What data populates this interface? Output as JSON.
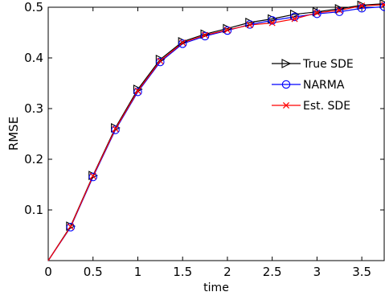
{
  "chart_data": {
    "type": "line",
    "title": "",
    "xlabel": "time",
    "ylabel": "RMSE",
    "xlim": [
      0,
      3.75
    ],
    "ylim": [
      0,
      0.5
    ],
    "x_ticks": [
      0,
      0.5,
      1,
      1.5,
      2,
      2.5,
      3,
      3.5
    ],
    "x_tick_labels": [
      "0",
      "0.5",
      "1",
      "1.5",
      "2",
      "2.5",
      "3",
      "3.5"
    ],
    "y_ticks": [
      0.1,
      0.2,
      0.3,
      0.4,
      0.5
    ],
    "y_tick_labels": [
      "0.1",
      "0.2",
      "0.3",
      "0.4",
      "0.5"
    ],
    "grid": false,
    "legend_position": "right",
    "x": [
      0,
      0.25,
      0.5,
      0.75,
      1,
      1.25,
      1.5,
      1.75,
      2,
      2.25,
      2.5,
      2.75,
      3,
      3.25,
      3.5,
      3.75
    ],
    "series": [
      {
        "name": "True SDE",
        "color": "#000000",
        "marker": "triangle-right",
        "values": [
          0,
          0.068,
          0.168,
          0.262,
          0.338,
          0.397,
          0.432,
          0.447,
          0.458,
          0.47,
          0.477,
          0.486,
          0.491,
          0.497,
          0.504,
          0.507
        ]
      },
      {
        "name": "NARMA",
        "color": "#0000ff",
        "marker": "circle",
        "values": [
          0,
          0.066,
          0.165,
          0.258,
          0.333,
          0.392,
          0.428,
          0.443,
          0.454,
          0.466,
          0.474,
          0.481,
          0.487,
          0.491,
          0.498,
          0.501
        ]
      },
      {
        "name": "Est. SDE",
        "color": "#ff0000",
        "marker": "x",
        "values": [
          0,
          0.067,
          0.167,
          0.26,
          0.335,
          0.394,
          0.43,
          0.445,
          0.455,
          0.465,
          0.469,
          0.477,
          0.489,
          0.494,
          0.503,
          0.505
        ]
      }
    ]
  }
}
